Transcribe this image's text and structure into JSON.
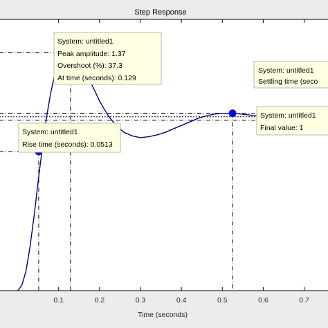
{
  "chart_data": {
    "type": "line",
    "title": "Step Response",
    "xlabel": "Time (seconds)",
    "ylabel": "",
    "xlim": [
      -0.045,
      0.76
    ],
    "ylim": [
      0,
      1.56
    ],
    "xticks": [
      0.1,
      0.2,
      0.3,
      0.4,
      0.5,
      0.6,
      0.7
    ],
    "xtick_labels": [
      "0.1",
      "0.2",
      "0.3",
      "0.4",
      "0.5",
      "0.6",
      "0.7"
    ],
    "grid": false,
    "series": [
      {
        "x": [
          0,
          0.01,
          0.02,
          0.03,
          0.04,
          0.05,
          0.06,
          0.07,
          0.08,
          0.09,
          0.1,
          0.11,
          0.12,
          0.129,
          0.14,
          0.15,
          0.16,
          0.17,
          0.18,
          0.19,
          0.2,
          0.22,
          0.24,
          0.26,
          0.28,
          0.3,
          0.32,
          0.34,
          0.36,
          0.38,
          0.4,
          0.42,
          0.44,
          0.46,
          0.48,
          0.5,
          0.52,
          0.54,
          0.56,
          0.58,
          0.6,
          0.65,
          0.7,
          0.76
        ],
        "y": [
          0,
          0.03,
          0.11,
          0.25,
          0.43,
          0.63,
          0.82,
          0.99,
          1.13,
          1.24,
          1.31,
          1.35,
          1.368,
          1.37,
          1.36,
          1.33,
          1.29,
          1.24,
          1.19,
          1.14,
          1.09,
          1.01,
          0.95,
          0.91,
          0.89,
          0.88,
          0.885,
          0.895,
          0.91,
          0.93,
          0.95,
          0.97,
          0.99,
          1.005,
          1.015,
          1.02,
          1.02,
          1.017,
          1.012,
          1.006,
          1.002,
          0.996,
          0.998,
          1.0
        ],
        "color": "#00007f"
      }
    ],
    "markers": [
      {
        "name": "rise-time",
        "x": 0.0513,
        "y": 0.8
      },
      {
        "name": "peak",
        "x": 0.129,
        "y": 1.37
      },
      {
        "name": "settling-time",
        "x": 0.525,
        "y": 1.02
      }
    ],
    "reference_lines": {
      "final_value": 1.0,
      "settling_upper": 1.02,
      "settling_lower": 0.98
    }
  },
  "datatips": {
    "peak": {
      "line1": "System: untitled1",
      "line2": "Peak amplitude: 1.37",
      "line3": "Overshoot (%): 37.3",
      "line4": "At time (seconds): 0.129"
    },
    "rise": {
      "line1": "System: untitled1",
      "line2": "Rise time (seconds): 0.0513"
    },
    "settling": {
      "line1": "System: untitled1",
      "line2": "Settling time (seco"
    },
    "final": {
      "line1": "System: untitled1",
      "line2": "Final value: 1"
    }
  },
  "colors": {
    "curve": "#00007f",
    "marker": "#0000ee",
    "datatip_bg": "#ffffe1",
    "figure_bg": "#ececec",
    "axes_bg": "#ffffff"
  }
}
